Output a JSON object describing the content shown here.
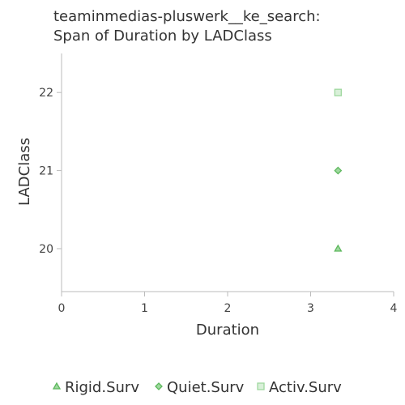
{
  "chart_data": {
    "type": "scatter",
    "title": [
      "teaminmedias-pluswerk__ke_search:",
      "Span of Duration by LADClass"
    ],
    "xlabel": "Duration",
    "ylabel": "LADClass",
    "xlim": [
      0,
      4
    ],
    "ylim": [
      19.45,
      22.5
    ],
    "xticks": [
      "0",
      "1",
      "2",
      "3",
      "4"
    ],
    "yticks": [
      "20",
      "21",
      "22"
    ],
    "grid": false,
    "legend_position": "bottom",
    "series": [
      {
        "name": "Rigid.Surv",
        "marker": "triangle",
        "color": "#5cb85c",
        "points": [
          {
            "x": 3.33,
            "y": 20
          }
        ]
      },
      {
        "name": "Quiet.Surv",
        "marker": "diamond",
        "color": "#5cb85c",
        "points": [
          {
            "x": 3.33,
            "y": 21
          }
        ]
      },
      {
        "name": "Activ.Surv",
        "marker": "square",
        "color": "#9fd89f",
        "points": [
          {
            "x": 3.33,
            "y": 22
          }
        ]
      }
    ]
  }
}
